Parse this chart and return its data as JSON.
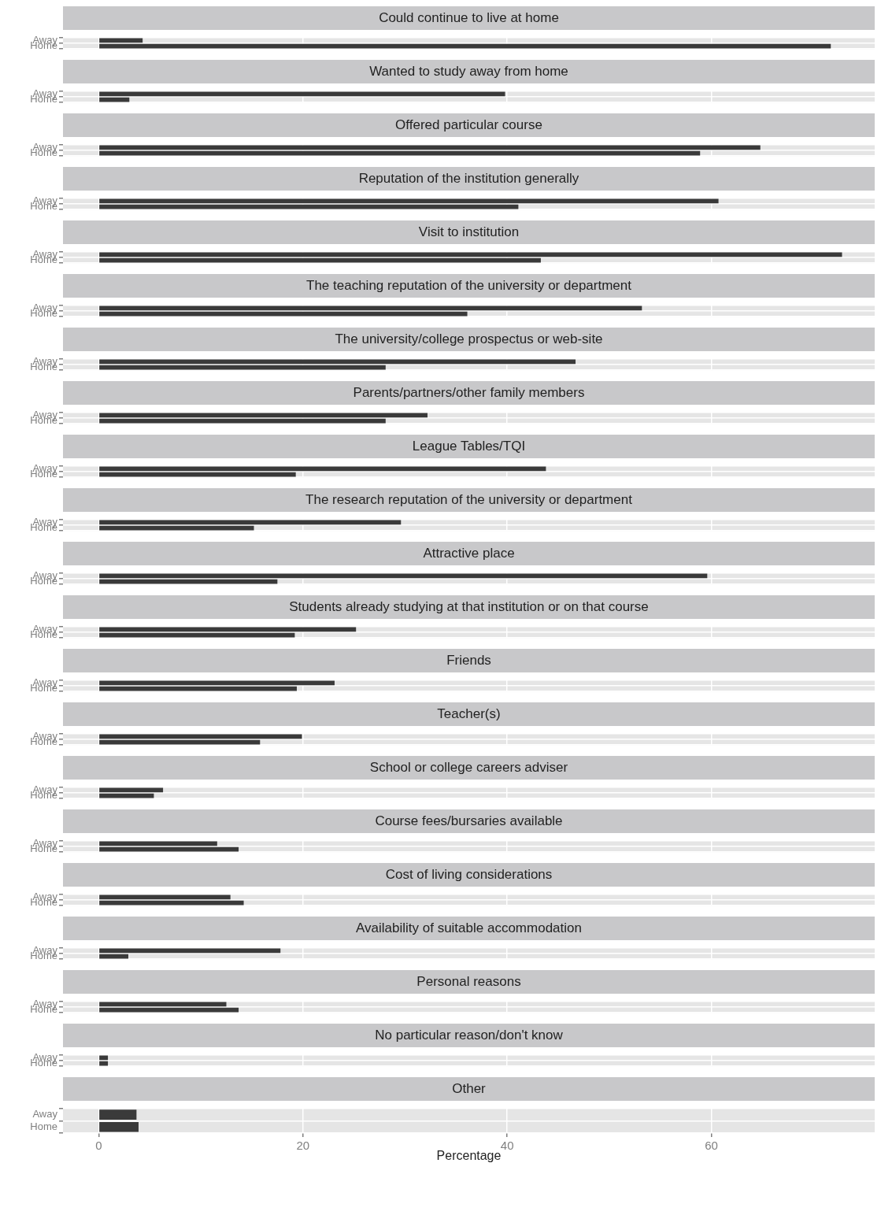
{
  "chart_data": [
    {
      "type": "bar",
      "orientation": "horizontal",
      "title": "Could continue to live at home",
      "categories": [
        "Away",
        "Home"
      ],
      "values": [
        4.3,
        71.7
      ],
      "color": "#3a3a3a",
      "xlim": [
        -3.5,
        76
      ],
      "xticks": [
        0,
        20,
        40,
        60
      ],
      "grid": true,
      "tick_labels": "y"
    },
    {
      "type": "bar",
      "orientation": "horizontal",
      "title": "Wanted to study away from home",
      "categories": [
        "Away",
        "Home"
      ],
      "values": [
        39.8,
        3.0
      ],
      "color": "#3a3a3a",
      "xlim": [
        -3.5,
        76
      ],
      "xticks": [
        0,
        20,
        40,
        60
      ],
      "grid": true,
      "tick_labels": "y"
    },
    {
      "type": "bar",
      "orientation": "horizontal",
      "title": "Offered particular course",
      "categories": [
        "Away",
        "Home"
      ],
      "values": [
        64.8,
        58.9
      ],
      "color": "#3a3a3a",
      "xlim": [
        -3.5,
        76
      ],
      "xticks": [
        0,
        20,
        40,
        60
      ],
      "grid": true,
      "tick_labels": "y"
    },
    {
      "type": "bar",
      "orientation": "horizontal",
      "title": "Reputation of the institution generally",
      "categories": [
        "Away",
        "Home"
      ],
      "values": [
        60.7,
        41.1
      ],
      "color": "#3a3a3a",
      "xlim": [
        -3.5,
        76
      ],
      "xticks": [
        0,
        20,
        40,
        60
      ],
      "grid": true,
      "tick_labels": "y"
    },
    {
      "type": "bar",
      "orientation": "horizontal",
      "title": "Visit to institution",
      "categories": [
        "Away",
        "Home"
      ],
      "values": [
        72.8,
        43.3
      ],
      "color": "#3a3a3a",
      "xlim": [
        -3.5,
        76
      ],
      "xticks": [
        0,
        20,
        40,
        60
      ],
      "grid": true,
      "tick_labels": "y"
    },
    {
      "type": "bar",
      "orientation": "horizontal",
      "title": "The teaching reputation of the university or department",
      "categories": [
        "Away",
        "Home"
      ],
      "values": [
        53.2,
        36.1
      ],
      "color": "#3a3a3a",
      "xlim": [
        -3.5,
        76
      ],
      "xticks": [
        0,
        20,
        40,
        60
      ],
      "grid": true,
      "tick_labels": "y"
    },
    {
      "type": "bar",
      "orientation": "horizontal",
      "title": "The university/college prospectus or web-site",
      "categories": [
        "Away",
        "Home"
      ],
      "values": [
        46.7,
        28.1
      ],
      "color": "#3a3a3a",
      "xlim": [
        -3.5,
        76
      ],
      "xticks": [
        0,
        20,
        40,
        60
      ],
      "grid": true,
      "tick_labels": "y"
    },
    {
      "type": "bar",
      "orientation": "horizontal",
      "title": "Parents/partners/other family members",
      "categories": [
        "Away",
        "Home"
      ],
      "values": [
        32.2,
        28.1
      ],
      "color": "#3a3a3a",
      "xlim": [
        -3.5,
        76
      ],
      "xticks": [
        0,
        20,
        40,
        60
      ],
      "grid": true,
      "tick_labels": "y"
    },
    {
      "type": "bar",
      "orientation": "horizontal",
      "title": "League Tables/TQI",
      "categories": [
        "Away",
        "Home"
      ],
      "values": [
        43.8,
        19.3
      ],
      "color": "#3a3a3a",
      "xlim": [
        -3.5,
        76
      ],
      "xticks": [
        0,
        20,
        40,
        60
      ],
      "grid": true,
      "tick_labels": "y"
    },
    {
      "type": "bar",
      "orientation": "horizontal",
      "title": "The research reputation of the university or department",
      "categories": [
        "Away",
        "Home"
      ],
      "values": [
        29.6,
        15.2
      ],
      "color": "#3a3a3a",
      "xlim": [
        -3.5,
        76
      ],
      "xticks": [
        0,
        20,
        40,
        60
      ],
      "grid": true,
      "tick_labels": "y"
    },
    {
      "type": "bar",
      "orientation": "horizontal",
      "title": "Attractive place",
      "categories": [
        "Away",
        "Home"
      ],
      "values": [
        59.6,
        17.5
      ],
      "color": "#3a3a3a",
      "xlim": [
        -3.5,
        76
      ],
      "xticks": [
        0,
        20,
        40,
        60
      ],
      "grid": true,
      "tick_labels": "y"
    },
    {
      "type": "bar",
      "orientation": "horizontal",
      "title": "Students already studying at that institution or on that course",
      "categories": [
        "Away",
        "Home"
      ],
      "values": [
        25.2,
        19.2
      ],
      "color": "#3a3a3a",
      "xlim": [
        -3.5,
        76
      ],
      "xticks": [
        0,
        20,
        40,
        60
      ],
      "grid": true,
      "tick_labels": "y"
    },
    {
      "type": "bar",
      "orientation": "horizontal",
      "title": "Friends",
      "categories": [
        "Away",
        "Home"
      ],
      "values": [
        23.1,
        19.4
      ],
      "color": "#3a3a3a",
      "xlim": [
        -3.5,
        76
      ],
      "xticks": [
        0,
        20,
        40,
        60
      ],
      "grid": true,
      "tick_labels": "y"
    },
    {
      "type": "bar",
      "orientation": "horizontal",
      "title": "Teacher(s)",
      "categories": [
        "Away",
        "Home"
      ],
      "values": [
        19.9,
        15.8
      ],
      "color": "#3a3a3a",
      "xlim": [
        -3.5,
        76
      ],
      "xticks": [
        0,
        20,
        40,
        60
      ],
      "grid": true,
      "tick_labels": "y"
    },
    {
      "type": "bar",
      "orientation": "horizontal",
      "title": "School or college careers adviser",
      "categories": [
        "Away",
        "Home"
      ],
      "values": [
        6.3,
        5.4
      ],
      "color": "#3a3a3a",
      "xlim": [
        -3.5,
        76
      ],
      "xticks": [
        0,
        20,
        40,
        60
      ],
      "grid": true,
      "tick_labels": "y"
    },
    {
      "type": "bar",
      "orientation": "horizontal",
      "title": "Course fees/bursaries available",
      "categories": [
        "Away",
        "Home"
      ],
      "values": [
        11.6,
        13.7
      ],
      "color": "#3a3a3a",
      "xlim": [
        -3.5,
        76
      ],
      "xticks": [
        0,
        20,
        40,
        60
      ],
      "grid": true,
      "tick_labels": "y"
    },
    {
      "type": "bar",
      "orientation": "horizontal",
      "title": "Cost of living considerations",
      "categories": [
        "Away",
        "Home"
      ],
      "values": [
        12.9,
        14.2
      ],
      "color": "#3a3a3a",
      "xlim": [
        -3.5,
        76
      ],
      "xticks": [
        0,
        20,
        40,
        60
      ],
      "grid": true,
      "tick_labels": "y"
    },
    {
      "type": "bar",
      "orientation": "horizontal",
      "title": "Availability of suitable accommodation",
      "categories": [
        "Away",
        "Home"
      ],
      "values": [
        17.8,
        2.9
      ],
      "color": "#3a3a3a",
      "xlim": [
        -3.5,
        76
      ],
      "xticks": [
        0,
        20,
        40,
        60
      ],
      "grid": true,
      "tick_labels": "y"
    },
    {
      "type": "bar",
      "orientation": "horizontal",
      "title": "Personal reasons",
      "categories": [
        "Away",
        "Home"
      ],
      "values": [
        12.5,
        13.7
      ],
      "color": "#3a3a3a",
      "xlim": [
        -3.5,
        76
      ],
      "xticks": [
        0,
        20,
        40,
        60
      ],
      "grid": true,
      "tick_labels": "y"
    },
    {
      "type": "bar",
      "orientation": "horizontal",
      "title": "No particular reason/don't know",
      "categories": [
        "Away",
        "Home"
      ],
      "values": [
        0.9,
        0.9
      ],
      "color": "#3a3a3a",
      "xlim": [
        -3.5,
        76
      ],
      "xticks": [
        0,
        20,
        40,
        60
      ],
      "grid": true,
      "tick_labels": "y"
    },
    {
      "type": "bar",
      "orientation": "horizontal",
      "title": "Other",
      "xlabel": "Percentage",
      "categories": [
        "Away",
        "Home"
      ],
      "values": [
        3.7,
        3.9
      ],
      "color": "#3a3a3a",
      "xlim": [
        -3.5,
        76
      ],
      "xticks": [
        0,
        20,
        40,
        60
      ],
      "grid": true
    }
  ]
}
